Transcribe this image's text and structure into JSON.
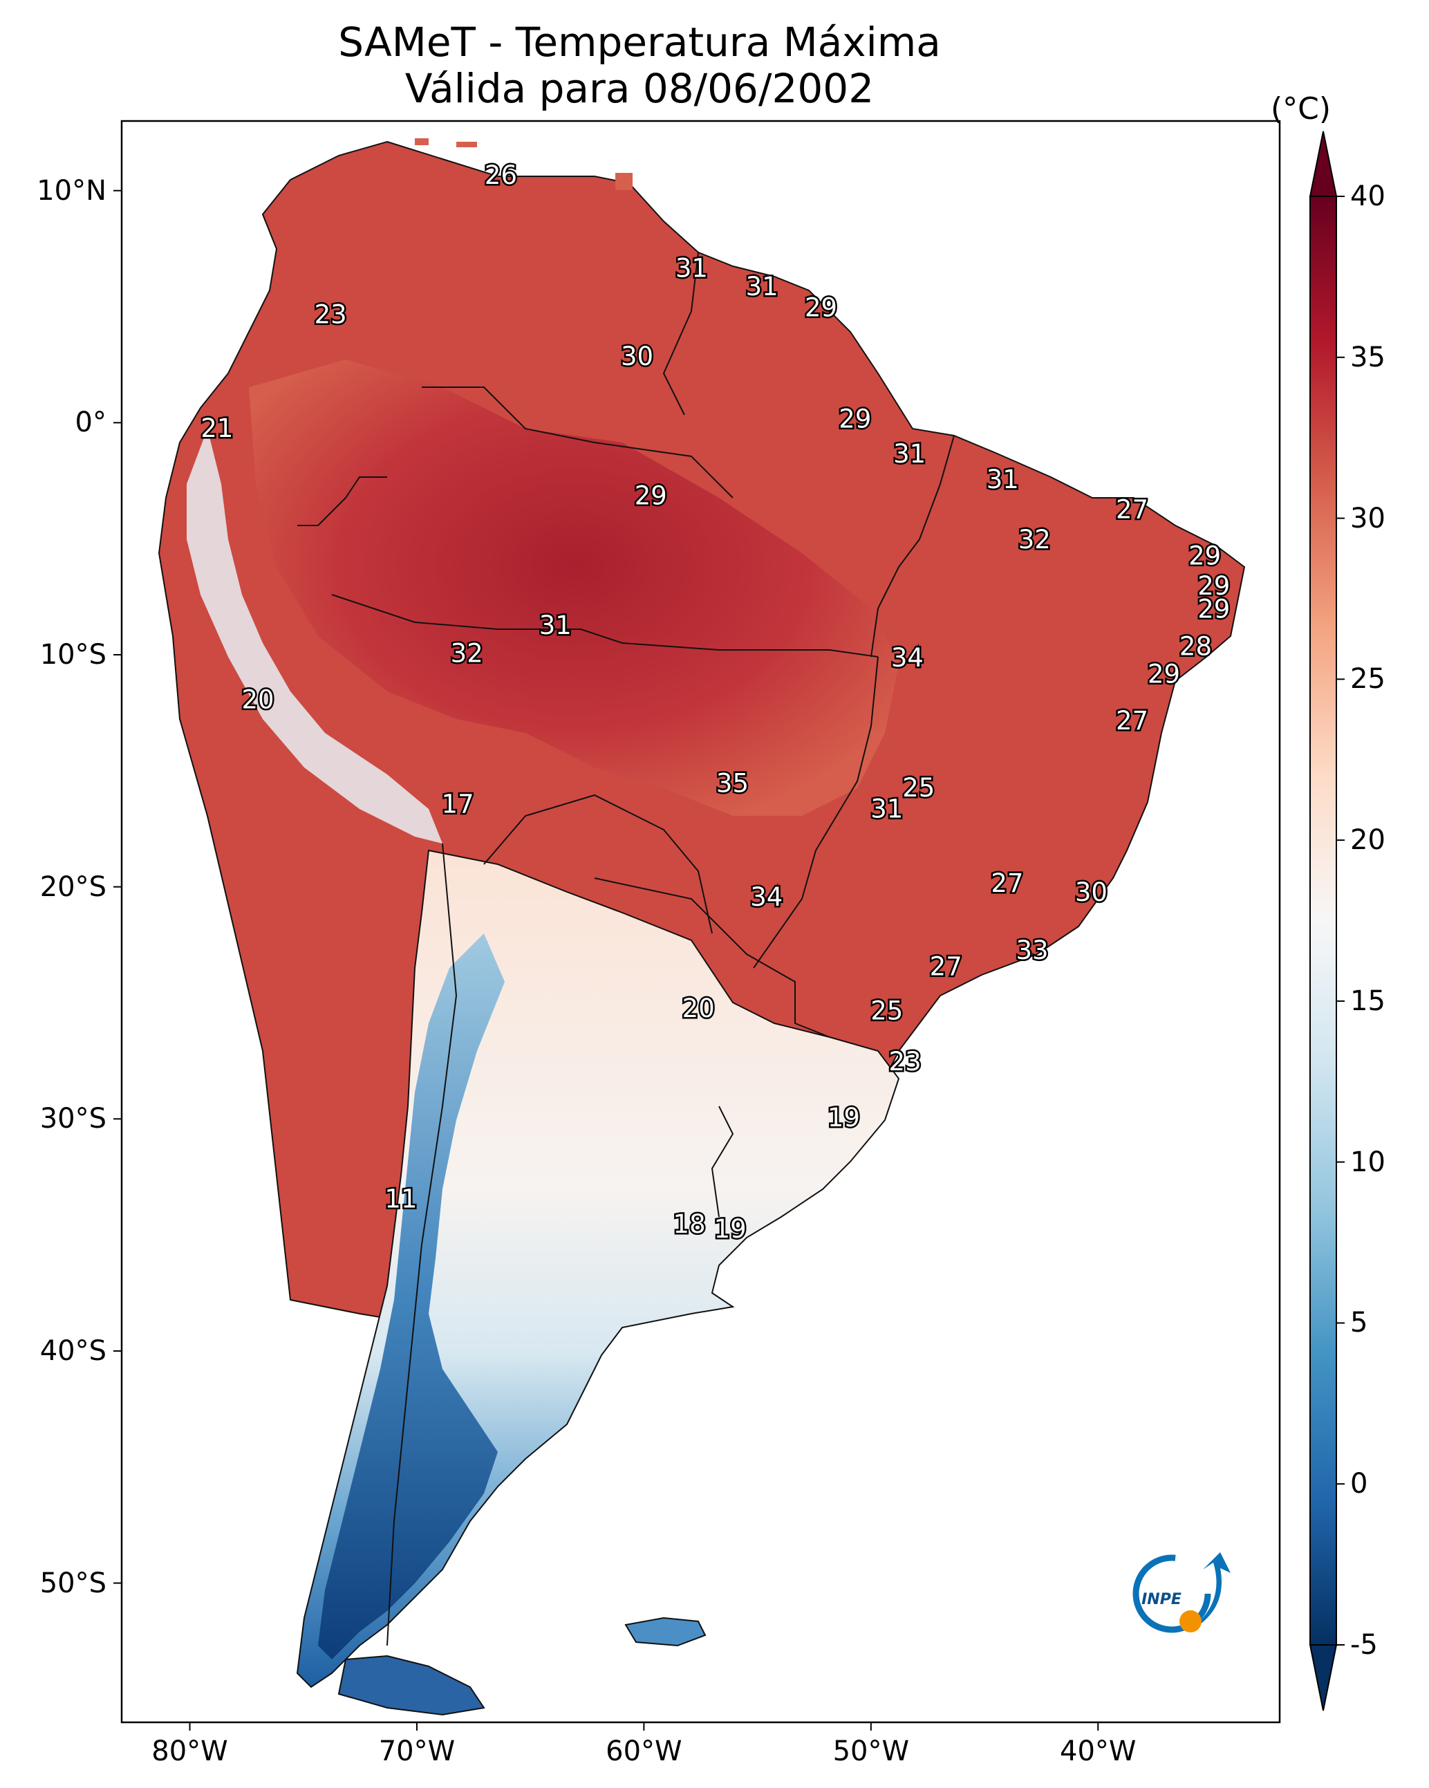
{
  "title": {
    "line1": "SAMeT - Temperatura Máxima",
    "line2": "Válida para 08/06/2002"
  },
  "map": {
    "lon_range": [
      -83,
      -32
    ],
    "lat_range": [
      -56,
      13
    ],
    "lon_ticks": [
      {
        "value": -80,
        "label": "80°W"
      },
      {
        "value": -70,
        "label": "70°W"
      },
      {
        "value": -60,
        "label": "60°W"
      },
      {
        "value": -50,
        "label": "50°W"
      },
      {
        "value": -40,
        "label": "40°W"
      }
    ],
    "lat_ticks": [
      {
        "value": 10,
        "label": "10°N"
      },
      {
        "value": 0,
        "label": "0°"
      },
      {
        "value": -10,
        "label": "10°S"
      },
      {
        "value": -20,
        "label": "20°S"
      },
      {
        "value": -30,
        "label": "30°S"
      },
      {
        "value": -40,
        "label": "40°S"
      },
      {
        "value": -50,
        "label": "50°S"
      }
    ],
    "station_values": [
      {
        "label": "26",
        "lon": -66.3,
        "lat": 10.6
      },
      {
        "label": "23",
        "lon": -73.8,
        "lat": 4.6
      },
      {
        "label": "31",
        "lon": -57.9,
        "lat": 6.6
      },
      {
        "label": "31",
        "lon": -54.8,
        "lat": 5.8
      },
      {
        "label": "29",
        "lon": -52.2,
        "lat": 4.9
      },
      {
        "label": "30",
        "lon": -60.3,
        "lat": 2.8
      },
      {
        "label": "21",
        "lon": -78.8,
        "lat": -0.3
      },
      {
        "label": "29",
        "lon": -50.7,
        "lat": 0.1
      },
      {
        "label": "31",
        "lon": -48.3,
        "lat": -1.4
      },
      {
        "label": "31",
        "lon": -44.2,
        "lat": -2.5
      },
      {
        "label": "29",
        "lon": -59.7,
        "lat": -3.2
      },
      {
        "label": "27",
        "lon": -38.5,
        "lat": -3.8
      },
      {
        "label": "32",
        "lon": -42.8,
        "lat": -5.1
      },
      {
        "label": "29",
        "lon": -35.3,
        "lat": -5.8
      },
      {
        "label": "29",
        "lon": -34.9,
        "lat": -7.1
      },
      {
        "label": "29",
        "lon": -34.9,
        "lat": -8.1
      },
      {
        "label": "31",
        "lon": -63.9,
        "lat": -8.8
      },
      {
        "label": "32",
        "lon": -67.8,
        "lat": -10.0
      },
      {
        "label": "34",
        "lon": -48.4,
        "lat": -10.2
      },
      {
        "label": "28",
        "lon": -35.7,
        "lat": -9.7
      },
      {
        "label": "29",
        "lon": -37.1,
        "lat": -10.9
      },
      {
        "label": "20",
        "lon": -77.0,
        "lat": -12.0
      },
      {
        "label": "27",
        "lon": -38.5,
        "lat": -12.9
      },
      {
        "label": "25",
        "lon": -47.9,
        "lat": -15.8
      },
      {
        "label": "35",
        "lon": -56.1,
        "lat": -15.6
      },
      {
        "label": "31",
        "lon": -49.3,
        "lat": -16.7
      },
      {
        "label": "17",
        "lon": -68.2,
        "lat": -16.5
      },
      {
        "label": "27",
        "lon": -44.0,
        "lat": -19.9
      },
      {
        "label": "30",
        "lon": -40.3,
        "lat": -20.3
      },
      {
        "label": "34",
        "lon": -54.6,
        "lat": -20.5
      },
      {
        "label": "33",
        "lon": -42.9,
        "lat": -22.8
      },
      {
        "label": "27",
        "lon": -46.7,
        "lat": -23.5
      },
      {
        "label": "20",
        "lon": -57.6,
        "lat": -25.3
      },
      {
        "label": "25",
        "lon": -49.3,
        "lat": -25.4
      },
      {
        "label": "23",
        "lon": -48.5,
        "lat": -27.6
      },
      {
        "label": "19",
        "lon": -51.2,
        "lat": -30.0
      },
      {
        "label": "11",
        "lon": -70.7,
        "lat": -33.5
      },
      {
        "label": "18",
        "lon": -58.0,
        "lat": -34.6
      },
      {
        "label": "19",
        "lon": -56.2,
        "lat": -34.8
      }
    ]
  },
  "colorbar": {
    "unit": "(°C)",
    "min": -5,
    "max": 40,
    "extend": "both",
    "colormap": "RdBu_r",
    "colors": [
      "#053061",
      "#2166ac",
      "#4393c3",
      "#92c5de",
      "#d1e5f0",
      "#f7f7f7",
      "#fddbc7",
      "#f4a582",
      "#d6604d",
      "#b2182b",
      "#67001f"
    ],
    "ticks": [
      {
        "value": 40,
        "label": "40"
      },
      {
        "value": 35,
        "label": "35"
      },
      {
        "value": 30,
        "label": "30"
      },
      {
        "value": 25,
        "label": "25"
      },
      {
        "value": 20,
        "label": "20"
      },
      {
        "value": 15,
        "label": "15"
      },
      {
        "value": 10,
        "label": "10"
      },
      {
        "value": 5,
        "label": "5"
      },
      {
        "value": 0,
        "label": "0"
      },
      {
        "value": -5,
        "label": "-5"
      }
    ]
  },
  "logo": {
    "text": "INPE",
    "colors": {
      "ring": "#0a72b8",
      "dot": "#f39200"
    }
  }
}
